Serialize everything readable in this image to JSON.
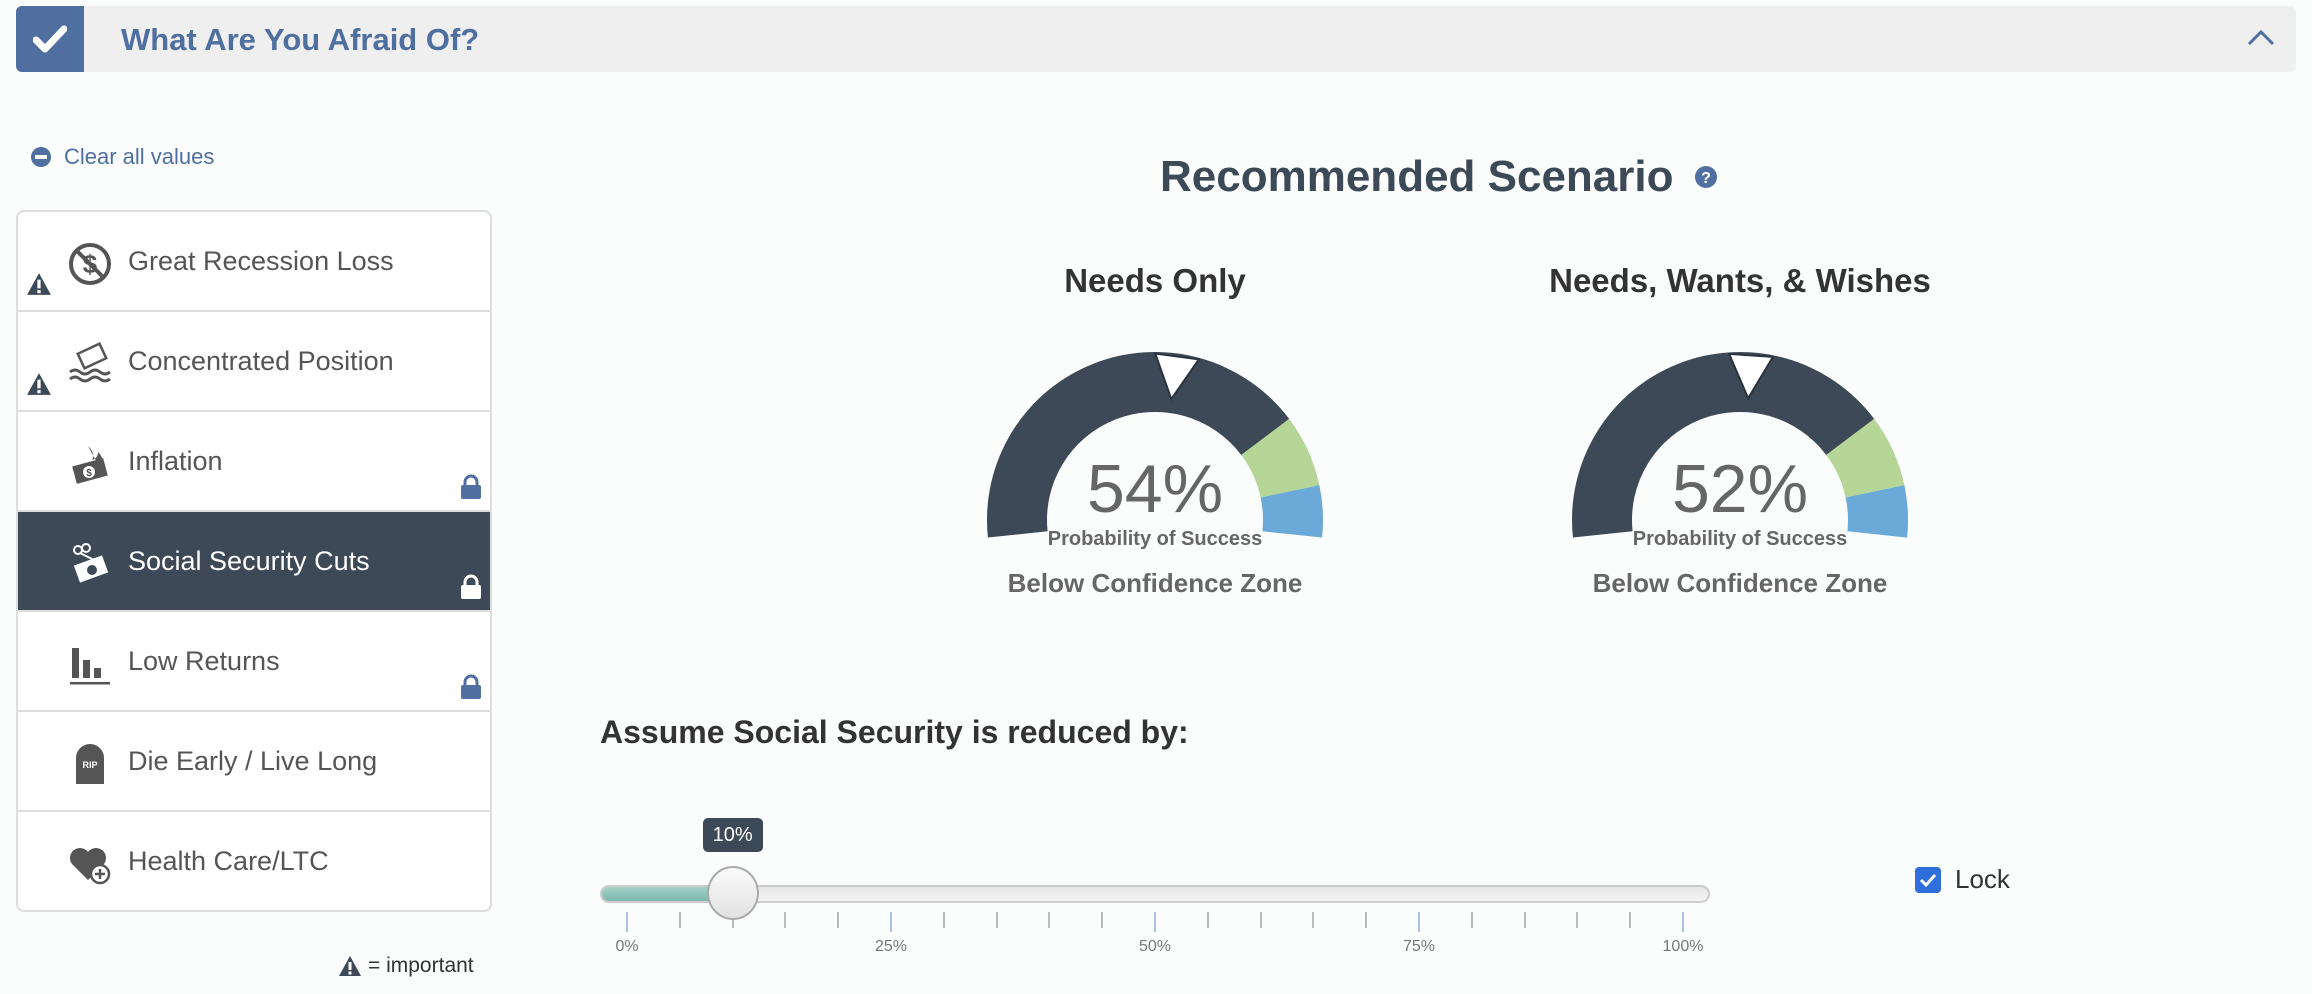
{
  "header": {
    "title": "What Are You Afraid Of?",
    "checked": true
  },
  "clear_label": "Clear all values",
  "fears": [
    {
      "label": "Great Recession Loss",
      "icon": "no-dollar-icon",
      "important": true,
      "locked": false,
      "selected": false
    },
    {
      "label": "Concentrated Position",
      "icon": "sinking-certificate-icon",
      "important": true,
      "locked": false,
      "selected": false
    },
    {
      "label": "Inflation",
      "icon": "burning-money-icon",
      "important": false,
      "locked": true,
      "selected": false
    },
    {
      "label": "Social Security Cuts",
      "icon": "cut-money-icon",
      "important": false,
      "locked": true,
      "selected": true
    },
    {
      "label": "Low Returns",
      "icon": "low-bars-icon",
      "important": false,
      "locked": true,
      "selected": false
    },
    {
      "label": "Die Early / Live Long",
      "icon": "tombstone-icon",
      "important": false,
      "locked": false,
      "selected": false
    },
    {
      "label": "Health Care/LTC",
      "icon": "heart-plus-icon",
      "important": false,
      "locked": false,
      "selected": false
    }
  ],
  "legend_label": "= important",
  "scenario_title": "Recommended Scenario",
  "gauges": [
    {
      "title": "Needs Only",
      "value": 54,
      "value_label": "54%",
      "subtitle": "Probability of Success",
      "zone": "Below Confidence Zone"
    },
    {
      "title": "Needs, Wants, & Wishes",
      "value": 52,
      "value_label": "52%",
      "subtitle": "Probability of Success",
      "zone": "Below Confidence Zone"
    }
  ],
  "colors": {
    "dark": "#3d4957",
    "green": "#b6d698",
    "blue": "#6aa9d8",
    "accent": "#4e6f9f"
  },
  "slider": {
    "label": "Assume Social Security is reduced by:",
    "value": 10,
    "value_label": "10%",
    "tick_labels": [
      "0%",
      "25%",
      "50%",
      "75%",
      "100%"
    ]
  },
  "lock": {
    "label": "Lock",
    "checked": true
  }
}
